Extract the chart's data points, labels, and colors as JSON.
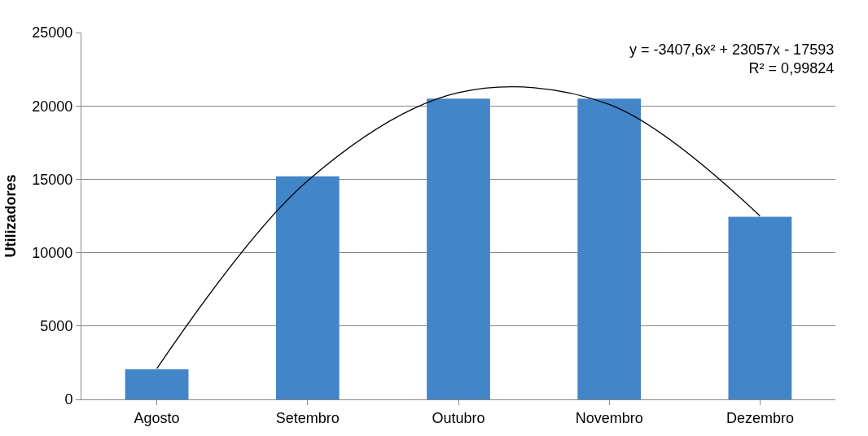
{
  "chart_data": {
    "type": "bar",
    "ylabel": "Utilizadores",
    "categories": [
      "Agosto",
      "Setembro",
      "Outubro",
      "Novembro",
      "Dezembro"
    ],
    "series": [
      {
        "color": "#4385c9",
        "values": [
          2050,
          15200,
          20500,
          20500,
          12450
        ]
      },
      {
        "type": "line",
        "color": "#000000",
        "values": [
          2100,
          14900,
          20900,
          20100,
          12500
        ]
      }
    ],
    "ylim": [
      0,
      25000
    ],
    "yticks": [
      0,
      5000,
      10000,
      15000,
      20000,
      25000
    ],
    "grid": "y",
    "legend": false,
    "marker": "none",
    "annotations": [
      "y = -3407,6x² + 23057x - 17593\nR² = 0,99824"
    ]
  }
}
